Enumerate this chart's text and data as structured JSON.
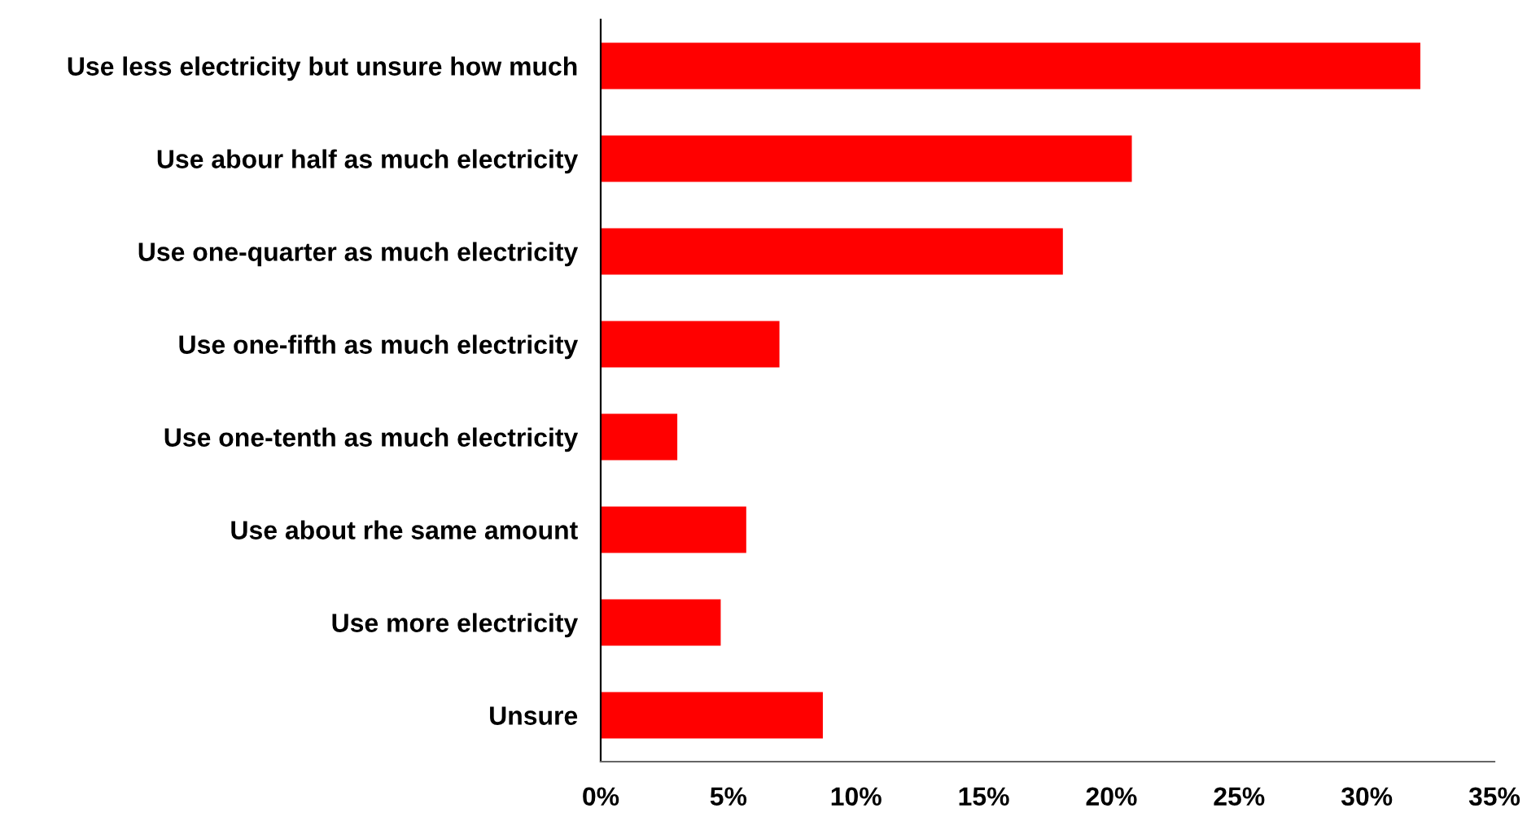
{
  "chart_data": {
    "type": "bar",
    "orientation": "horizontal",
    "categories": [
      "Use less electricity but unsure how much",
      "Use abour half as much electricity",
      "Use one-quarter as much electricity",
      "Use one-fifth as much electricity",
      "Use one-tenth as much electricity",
      "Use about rhe same amount",
      "Use more electricity",
      "Unsure"
    ],
    "values": [
      32.1,
      20.8,
      18.1,
      7.0,
      3.0,
      5.7,
      4.7,
      8.7
    ],
    "color": "#ff0000",
    "xlim": [
      0,
      35
    ],
    "xticks": [
      {
        "value": 0,
        "label": "0%"
      },
      {
        "value": 5,
        "label": "5%"
      },
      {
        "value": 10,
        "label": "10%"
      },
      {
        "value": 15,
        "label": "15%"
      },
      {
        "value": 20,
        "label": "20%"
      },
      {
        "value": 25,
        "label": "25%"
      },
      {
        "value": 30,
        "label": "30%"
      },
      {
        "value": 35,
        "label": "35%"
      }
    ]
  }
}
